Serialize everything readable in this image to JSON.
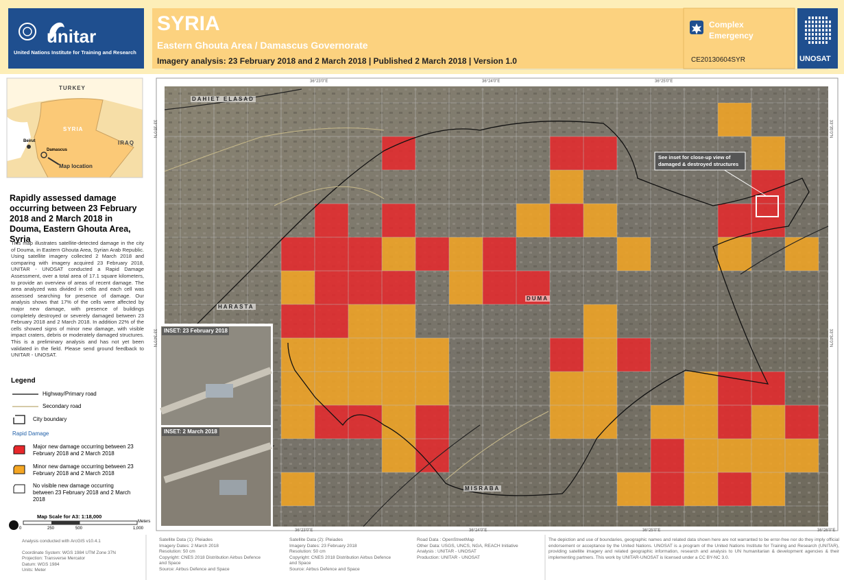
{
  "header": {
    "org_logo": "unitar",
    "org_full_name": "United Nations Institute for Training and Research",
    "title": "SYRIA",
    "subtitle": "Eastern Ghouta Area / Damascus Governorate",
    "imagery_line": "Imagery analysis: 23 February 2018 and 2 March 2018 | Published 2 March 2018 | Version 1.0",
    "emergency_type": [
      "Complex",
      "Emergency"
    ],
    "glide": "CE20130604SYR",
    "unosat": "UNOSAT"
  },
  "locator": {
    "turkey": "TURKEY",
    "syria": "SYRIA",
    "iraq": "IRAQ",
    "beirut": "Beirut",
    "damascus": "Damascus",
    "map_location": "Map location"
  },
  "sidebar": {
    "heading": "Rapidly assessed damage occurring between 23 February 2018 and 2 March 2018 in Douma, Eastern Ghouta Area, Syria",
    "description": "This map illustrates satellite-detected damage in the city of Douma, in Eastern Ghouta Area, Syrian Arab Republic. Using satellite imagery collected 2 March 2018 and comparing with imagery acquired 23 February 2018, UNITAR - UNOSAT conducted a Rapid Damage Assessment, over a total area of 17.1 square kilometers, to provide an overview of areas of recent damage. The area analyzed was divided in cells and each cell was assessed searching for presence of damage. Our analysis shows that 17% of the cells were affected by major new damage, with presence of buildings completely destroyed or severely damaged between 23 February 2018 and 2 March 2018. In addition 22% of the cells showed signs of minor new damage, with visible impact craters, debris or moderately damaged structures. This is a preliminary analysis and has not yet been validated in the field. Please send ground feedback to UNITAR - UNOSAT."
  },
  "legend": {
    "title": "Legend",
    "highway": "Highway/Primary road",
    "secondary": "Secondary road",
    "boundary": "City boundary",
    "rapid_damage": "Rapid Damage",
    "major": "Major new damage occurring between 23 February 2018 and 2 March 2018",
    "minor": "Minor new damage occurring between 23 February 2018 and 2 March 2018",
    "none": "No visible new damage occurring between 23 February 2018 and 2 March 2018"
  },
  "scale": {
    "title": "Map Scale for A3: 1:18,000",
    "unit": "Meters",
    "ticks": [
      "0",
      "250",
      "500",
      "1,000"
    ]
  },
  "map_info": [
    "Analysis conducted with ArcGIS v10.4.1",
    "Coordinate System: WGS 1984 UTM Zone 37N",
    "Projection: Transverse Mercator",
    "Datum: WGS 1984",
    "Units: Meter"
  ],
  "map": {
    "places": [
      "DAHIET ELASAD",
      "HARASTA",
      "DUMA",
      "MISRABA"
    ],
    "callout": [
      "See inset for close-up view of",
      "damaged & destroyed structures"
    ],
    "inset_1": "INSET: 23 February 2018",
    "inset_2": "INSET: 2 March 2018",
    "top_coords": [
      "36°23'0\"E",
      "36°24'0\"E",
      "36°25'0\"E"
    ],
    "bottom_coords": [
      "36°23'0\"E",
      "36°24'0\"E",
      "36°25'0\"E",
      "36°26'0\"E"
    ],
    "side_coords": [
      "33°35'0\"N",
      "33°34'0\"N"
    ]
  },
  "credits": [
    [
      "Satellite Data (1): Pleiades",
      "Imagery Dates: 2 March 2018",
      "Resolution: 50 cm",
      "Copyright: CNES 2018 Distribution Airbus Defence",
      "and Space",
      "Source: Airbus Defence and Space"
    ],
    [
      "Satellite Data (2): Pleiades",
      "Imagery Dates: 23 February 2018",
      "Resolution: 50 cm",
      "Copyright: CNES 2018 Distribution Airbus Defence",
      "and Space",
      "Source: Airbus Defence and Space"
    ],
    [
      "Road Data : OpenStreetMap",
      "Other Data: USGS, UNCS, NGA, REACH Initiative",
      "Analysis : UNITAR - UNOSAT",
      "Production: UNITAR - UNOSAT"
    ]
  ],
  "disclaimer": "The depiction and use of boundaries, geographic names and related data shown here are not warranted to be error-free nor do they imply official endorsement or acceptance by the United Nations. UNOSAT is a program of the United Nations Institute for Training and Research (UNITAR), providing satellite imagery and related geographic information, research and analysis to UN humanitarian & development agencies & their implementing partners. This work by UNITAR-UNOSAT is licensed under a CC BY-NC 3.0."
}
